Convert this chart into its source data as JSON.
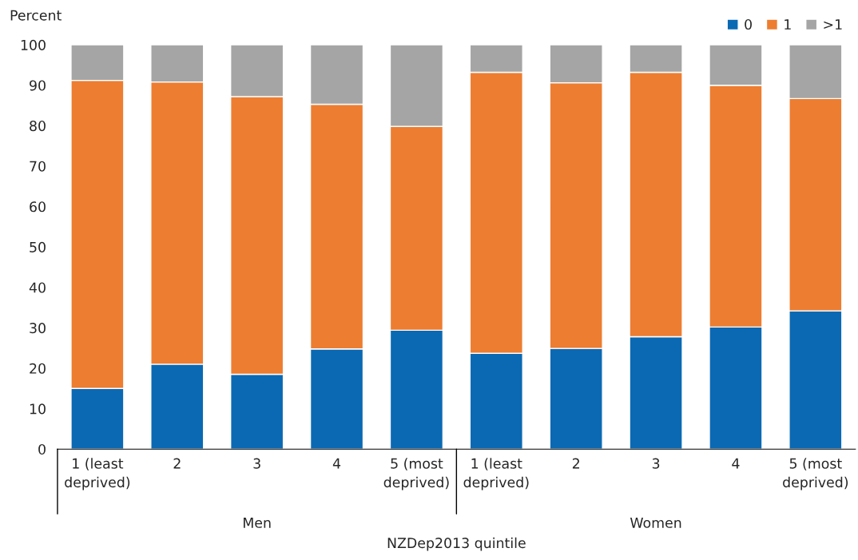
{
  "chart_data": {
    "type": "bar",
    "stacked": true,
    "ylabel": "Percent",
    "xlabel": "NZDep2013 quintile",
    "categories": [
      "1 (least\ndeprived)",
      "2",
      "3",
      "4",
      "5 (most\ndeprived)",
      "1 (least\ndeprived)",
      "2",
      "3",
      "4",
      "5 (most\ndeprived)"
    ],
    "series": [
      {
        "name": "0",
        "color": "#0b69b3",
        "values": [
          15.0,
          21.0,
          18.5,
          24.8,
          29.4,
          23.7,
          24.9,
          27.8,
          30.2,
          34.2
        ]
      },
      {
        "name": "1",
        "color": "#ed7d31",
        "values": [
          76.2,
          69.8,
          68.7,
          60.5,
          50.4,
          69.5,
          65.7,
          65.4,
          59.8,
          52.5
        ]
      },
      {
        "name": ">1",
        "color": "#a5a5a5",
        "values": [
          8.8,
          9.2,
          12.8,
          14.7,
          20.2,
          6.8,
          9.4,
          6.8,
          10.0,
          13.3
        ]
      }
    ],
    "annotations": [
      "Men",
      "Women"
    ],
    "ylim": [
      0,
      100
    ],
    "yticks": [
      0,
      10,
      20,
      30,
      40,
      50,
      60,
      70,
      80,
      90,
      100
    ],
    "grid": false,
    "legend": "top right"
  }
}
